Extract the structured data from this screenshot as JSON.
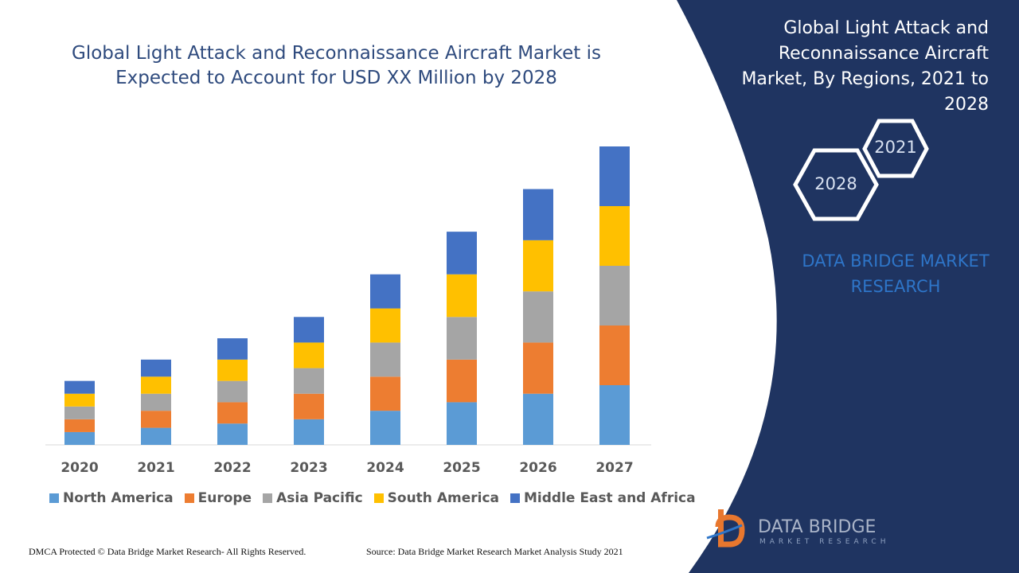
{
  "header": {
    "title_line1": "Global Light Attack and Reconnaissance Aircraft Market is",
    "title_line2": "Expected to Account for USD XX Million by 2028"
  },
  "side_panel": {
    "title_lines": [
      "Global Light Attack and",
      "Reconnaissance Aircraft",
      "Market, By Regions, 2021 to",
      "2028"
    ],
    "hex_back": "2021",
    "hex_front": "2028",
    "brand_line1": "DATA BRIDGE MARKET",
    "brand_line2": "RESEARCH",
    "panel_color": "#1f3461"
  },
  "logo": {
    "name": "DATA BRIDGE",
    "tagline": "MARKET RESEARCH"
  },
  "footer": {
    "left": "DMCA Protected © Data Bridge Market Research- All Rights Reserved.",
    "right": "Source: Data Bridge Market Research Market Analysis Study 2021"
  },
  "chart_data": {
    "type": "bar",
    "stacked": true,
    "title": "Global Light Attack and Reconnaissance Aircraft Market is Expected to Account for USD XX Million by 2028",
    "categories": [
      "2020",
      "2021",
      "2022",
      "2023",
      "2024",
      "2025",
      "2026",
      "2027"
    ],
    "series": [
      {
        "name": "North America",
        "color": "#5b9bd5",
        "values": [
          15,
          20,
          25,
          30,
          40,
          50,
          60,
          70
        ]
      },
      {
        "name": "Europe",
        "color": "#ed7d31",
        "values": [
          15,
          20,
          25,
          30,
          40,
          50,
          60,
          70
        ]
      },
      {
        "name": "Asia Pacific",
        "color": "#a5a5a5",
        "values": [
          15,
          20,
          25,
          30,
          40,
          50,
          60,
          70
        ]
      },
      {
        "name": "South America",
        "color": "#ffc000",
        "values": [
          15,
          20,
          25,
          30,
          40,
          50,
          60,
          70
        ]
      },
      {
        "name": "Middle East and Africa",
        "color": "#4472c4",
        "values": [
          15,
          20,
          25,
          30,
          40,
          50,
          60,
          70
        ]
      }
    ],
    "ylim": [
      0,
      350
    ],
    "grid": false,
    "legend_position": "bottom"
  }
}
